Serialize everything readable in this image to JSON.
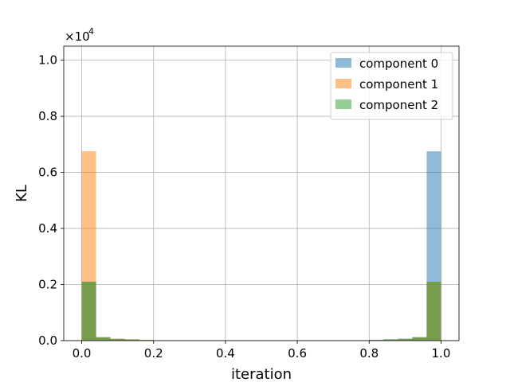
{
  "chart_data": {
    "type": "bar",
    "xlabel": "iteration",
    "ylabel": "KL",
    "xlim": [
      -0.05,
      1.05
    ],
    "ylim": [
      0,
      10500
    ],
    "multiplier": {
      "base": "×10",
      "exponent": "4"
    },
    "x_ticks": [
      {
        "value": 0.0,
        "label": "0.0"
      },
      {
        "value": 0.2,
        "label": "0.2"
      },
      {
        "value": 0.4,
        "label": "0.4"
      },
      {
        "value": 0.6,
        "label": "0.6"
      },
      {
        "value": 0.8,
        "label": "0.8"
      },
      {
        "value": 1.0,
        "label": "1.0"
      }
    ],
    "y_ticks": [
      {
        "value": 0,
        "label": "0.0"
      },
      {
        "value": 2000,
        "label": "0.2"
      },
      {
        "value": 4000,
        "label": "0.4"
      },
      {
        "value": 6000,
        "label": "0.6"
      },
      {
        "value": 8000,
        "label": "0.8"
      },
      {
        "value": 10000,
        "label": "1.0"
      }
    ],
    "grid": true,
    "legend_position": "top-right",
    "bin_edges": [
      0.0,
      0.04,
      0.08,
      0.12,
      0.16,
      0.2,
      0.24,
      0.28,
      0.32,
      0.36,
      0.4,
      0.44,
      0.48,
      0.52,
      0.56,
      0.6,
      0.64,
      0.68,
      0.72,
      0.76,
      0.8,
      0.84,
      0.88,
      0.92,
      0.96,
      1.0
    ],
    "series": [
      {
        "name": "component 0",
        "color": "#1f77b4",
        "opacity": 0.5,
        "values": [
          2100,
          120,
          60,
          40,
          20,
          10,
          10,
          5,
          5,
          5,
          5,
          5,
          5,
          5,
          5,
          5,
          5,
          5,
          10,
          10,
          30,
          50,
          70,
          120,
          6750
        ]
      },
      {
        "name": "component 1",
        "color": "#ff7f0e",
        "opacity": 0.5,
        "values": [
          6750,
          120,
          70,
          50,
          30,
          10,
          10,
          5,
          5,
          5,
          5,
          5,
          5,
          5,
          5,
          5,
          5,
          5,
          10,
          10,
          20,
          40,
          60,
          120,
          2100
        ]
      },
      {
        "name": "component 2",
        "color": "#2ca02c",
        "opacity": 0.5,
        "values": [
          2100,
          120,
          60,
          40,
          20,
          10,
          10,
          5,
          5,
          5,
          5,
          5,
          5,
          5,
          5,
          5,
          5,
          5,
          10,
          10,
          20,
          40,
          60,
          120,
          2100
        ]
      }
    ]
  }
}
